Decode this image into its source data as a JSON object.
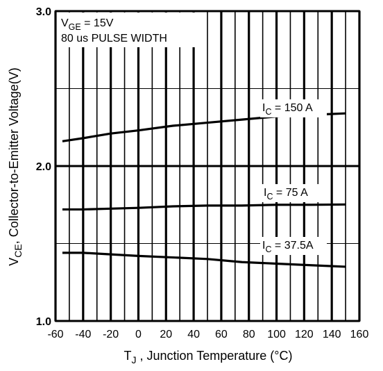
{
  "chart_data": {
    "type": "line",
    "xlabel": {
      "main": "T",
      "sub": "J",
      "rest": " , Junction Temperature (°C)"
    },
    "ylabel": {
      "main": "V",
      "sub": "CE",
      "rest": ",  Collector-to-Emitter Voltage(V)"
    },
    "xlim": [
      -60,
      160
    ],
    "ylim": [
      1.0,
      3.0
    ],
    "x_ticks": [
      -60,
      -40,
      -20,
      0,
      20,
      40,
      60,
      80,
      100,
      120,
      140,
      160
    ],
    "x_tick_labels": [
      "-60",
      "-40",
      "-20",
      "0",
      "20",
      "40",
      "60",
      "80",
      "100",
      "120",
      "140",
      "160"
    ],
    "y_ticks": [
      1.0,
      2.0,
      3.0
    ],
    "y_tick_labels": [
      "1.0",
      "2.0",
      "3.0"
    ],
    "y_minor_grid": [
      1.5,
      2.5
    ],
    "grid": true,
    "conditions": [
      {
        "main": "V",
        "sub": "GE",
        "rest": " = 15V"
      },
      {
        "main": "80 us PULSE WIDTH",
        "sub": "",
        "rest": ""
      }
    ],
    "series": [
      {
        "label": {
          "main": "I",
          "sub": "C",
          "rest": " = 150 A"
        },
        "x": [
          -55,
          -40,
          -20,
          0,
          25,
          50,
          75,
          100,
          125,
          150
        ],
        "y": [
          2.16,
          2.18,
          2.21,
          2.23,
          2.26,
          2.28,
          2.3,
          2.32,
          2.33,
          2.34
        ]
      },
      {
        "label": {
          "main": "I",
          "sub": "C",
          "rest": " =   75 A"
        },
        "x": [
          -55,
          -40,
          -20,
          0,
          25,
          50,
          75,
          100,
          125,
          150
        ],
        "y": [
          1.72,
          1.72,
          1.725,
          1.73,
          1.74,
          1.745,
          1.745,
          1.75,
          1.75,
          1.752
        ]
      },
      {
        "label": {
          "main": "I",
          "sub": "C",
          "rest": " =  37.5A"
        },
        "x": [
          -55,
          -40,
          -20,
          0,
          25,
          50,
          75,
          100,
          125,
          150
        ],
        "y": [
          1.44,
          1.44,
          1.43,
          1.42,
          1.41,
          1.4,
          1.38,
          1.37,
          1.36,
          1.35
        ]
      }
    ]
  }
}
